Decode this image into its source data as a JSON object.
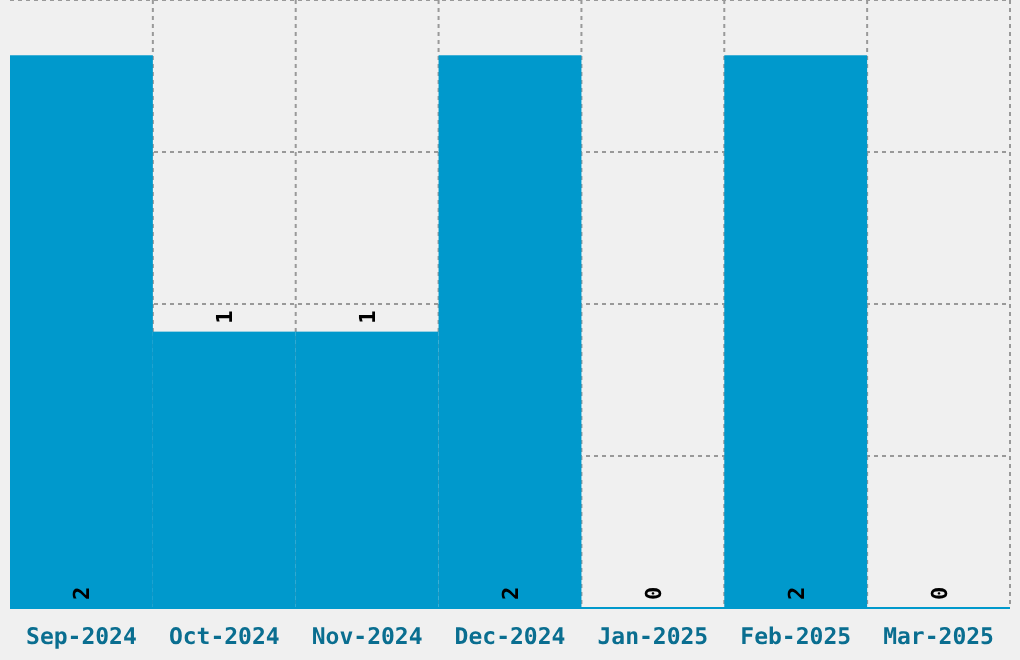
{
  "chart_data": {
    "type": "bar",
    "categories": [
      "Sep-2024",
      "Oct-2024",
      "Nov-2024",
      "Dec-2024",
      "Jan-2025",
      "Feb-2025",
      "Mar-2025"
    ],
    "values": [
      2,
      1,
      1,
      2,
      0,
      2,
      0
    ],
    "color": "#0099cc",
    "ylim": [
      0,
      2.2
    ],
    "yticks": [
      {
        "value": 0.55,
        "label": null
      },
      {
        "value": 1.1,
        "label": null
      },
      {
        "value": 1.65,
        "label": null
      },
      {
        "value": 2.2,
        "label": null
      }
    ],
    "grid": true,
    "tick_labels": "x",
    "data_labels": true
  }
}
